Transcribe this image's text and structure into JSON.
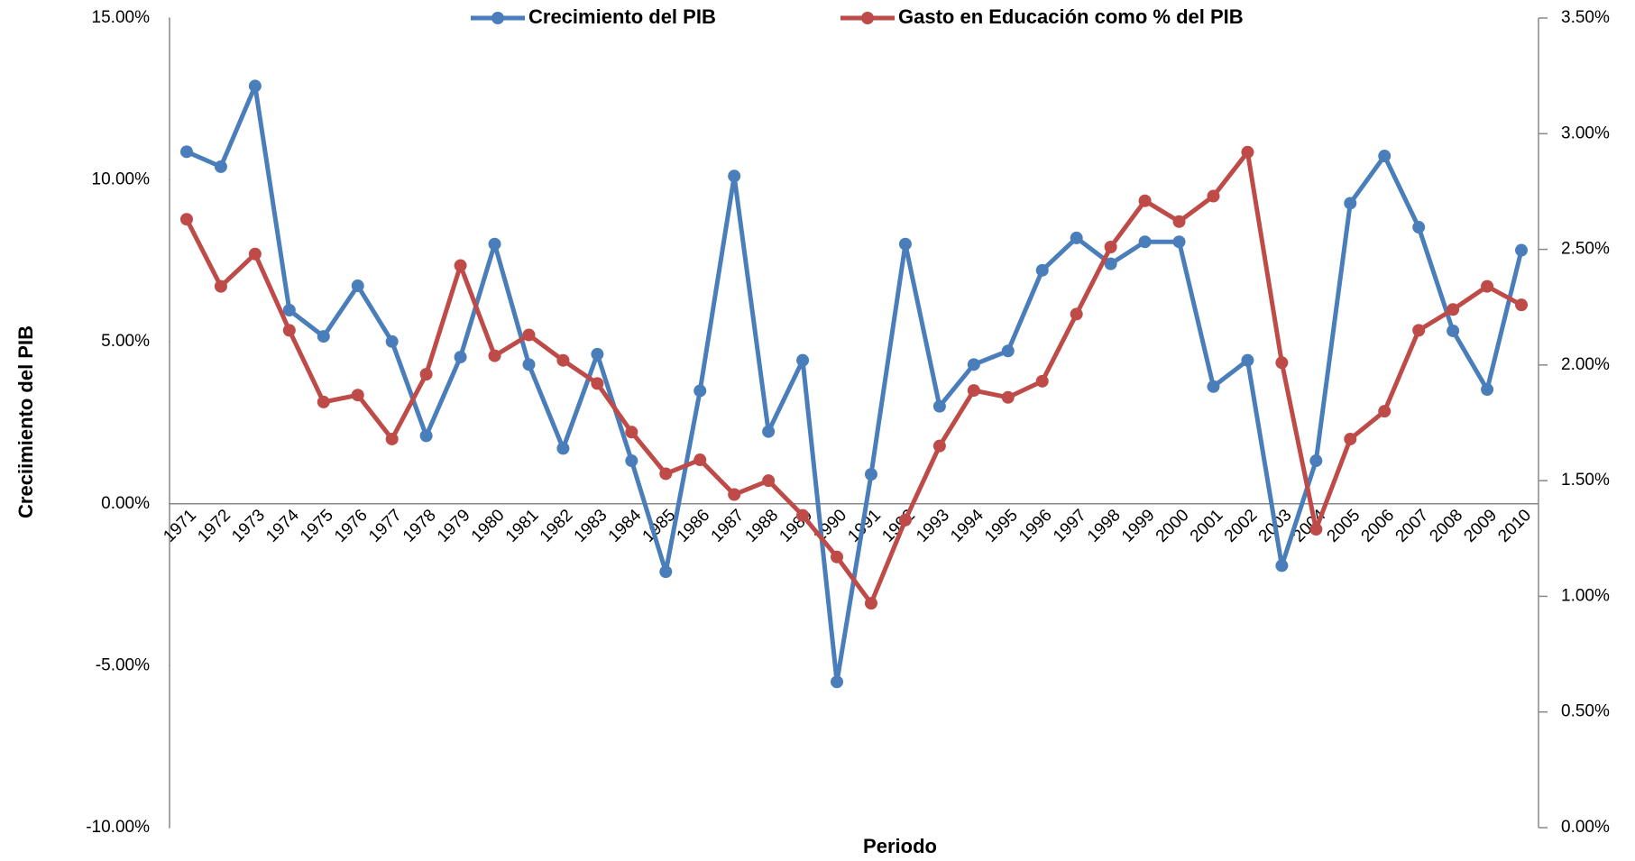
{
  "chart_data": {
    "type": "line",
    "x_label": "Periodo",
    "y_label": "Creciimiento del PIB",
    "categories": [
      "1971",
      "1972",
      "1973",
      "1974",
      "1975",
      "1976",
      "1977",
      "1978",
      "1979",
      "1980",
      "1981",
      "1982",
      "1983",
      "1984",
      "1985",
      "1986",
      "1987",
      "1988",
      "1989",
      "1990",
      "1991",
      "1992",
      "1993",
      "1994",
      "1995",
      "1996",
      "1997",
      "1998",
      "1999",
      "2000",
      "2001",
      "2002",
      "2003",
      "2004",
      "2005",
      "2006",
      "2007",
      "2008",
      "2009",
      "2010"
    ],
    "series": [
      {
        "name": "Crecimiento del PIB",
        "color": "#4a7ebb",
        "values": [
          10.87,
          10.41,
          12.9,
          5.98,
          5.17,
          6.73,
          5.01,
          2.1,
          4.53,
          8.02,
          4.3,
          1.71,
          4.62,
          1.33,
          -2.1,
          3.49,
          10.12,
          2.23,
          4.43,
          -5.5,
          0.91,
          8.02,
          3.01,
          4.3,
          4.72,
          7.21,
          8.21,
          7.41,
          8.09,
          8.09,
          3.62,
          4.43,
          -1.91,
          1.33,
          9.28,
          10.74,
          8.54,
          5.34,
          3.53,
          7.83
        ]
      },
      {
        "name": "Gasto en Educación como % del PIB",
        "color": "#be4b48",
        "axis": "y2",
        "values": [
          2.63,
          2.34,
          2.48,
          2.15,
          1.84,
          1.87,
          1.68,
          1.96,
          2.43,
          2.04,
          2.13,
          2.02,
          1.92,
          1.71,
          1.53,
          1.59,
          1.44,
          1.5,
          1.35,
          1.17,
          0.97,
          1.33,
          1.65,
          1.89,
          1.86,
          1.93,
          2.22,
          2.51,
          2.71,
          2.62,
          2.73,
          2.92,
          2.01,
          1.29,
          1.68,
          1.8,
          2.15,
          2.24,
          2.34,
          2.26
        ]
      }
    ],
    "ylim": [
      -10,
      15
    ],
    "yticks": [
      {
        "value": -10,
        "label": "-10.00%"
      },
      {
        "value": -5,
        "label": "-5.00%"
      },
      {
        "value": 0,
        "label": "0.00%"
      },
      {
        "value": 5,
        "label": "5.00%"
      },
      {
        "value": 10,
        "label": "10.00%"
      },
      {
        "value": 15,
        "label": "15.00%"
      }
    ],
    "y2lim": [
      0,
      3.5
    ],
    "y2ticks": [
      {
        "value": 0,
        "label": "0.00%"
      },
      {
        "value": 0.5,
        "label": "0.50%"
      },
      {
        "value": 1,
        "label": "1.00%"
      },
      {
        "value": 1.5,
        "label": "1.50%"
      },
      {
        "value": 2,
        "label": "2.00%"
      },
      {
        "value": 2.5,
        "label": "2.50%"
      },
      {
        "value": 3,
        "label": "3.00%"
      },
      {
        "value": 3.5,
        "label": "3.50%"
      }
    ],
    "legend": "top",
    "grid": false
  }
}
